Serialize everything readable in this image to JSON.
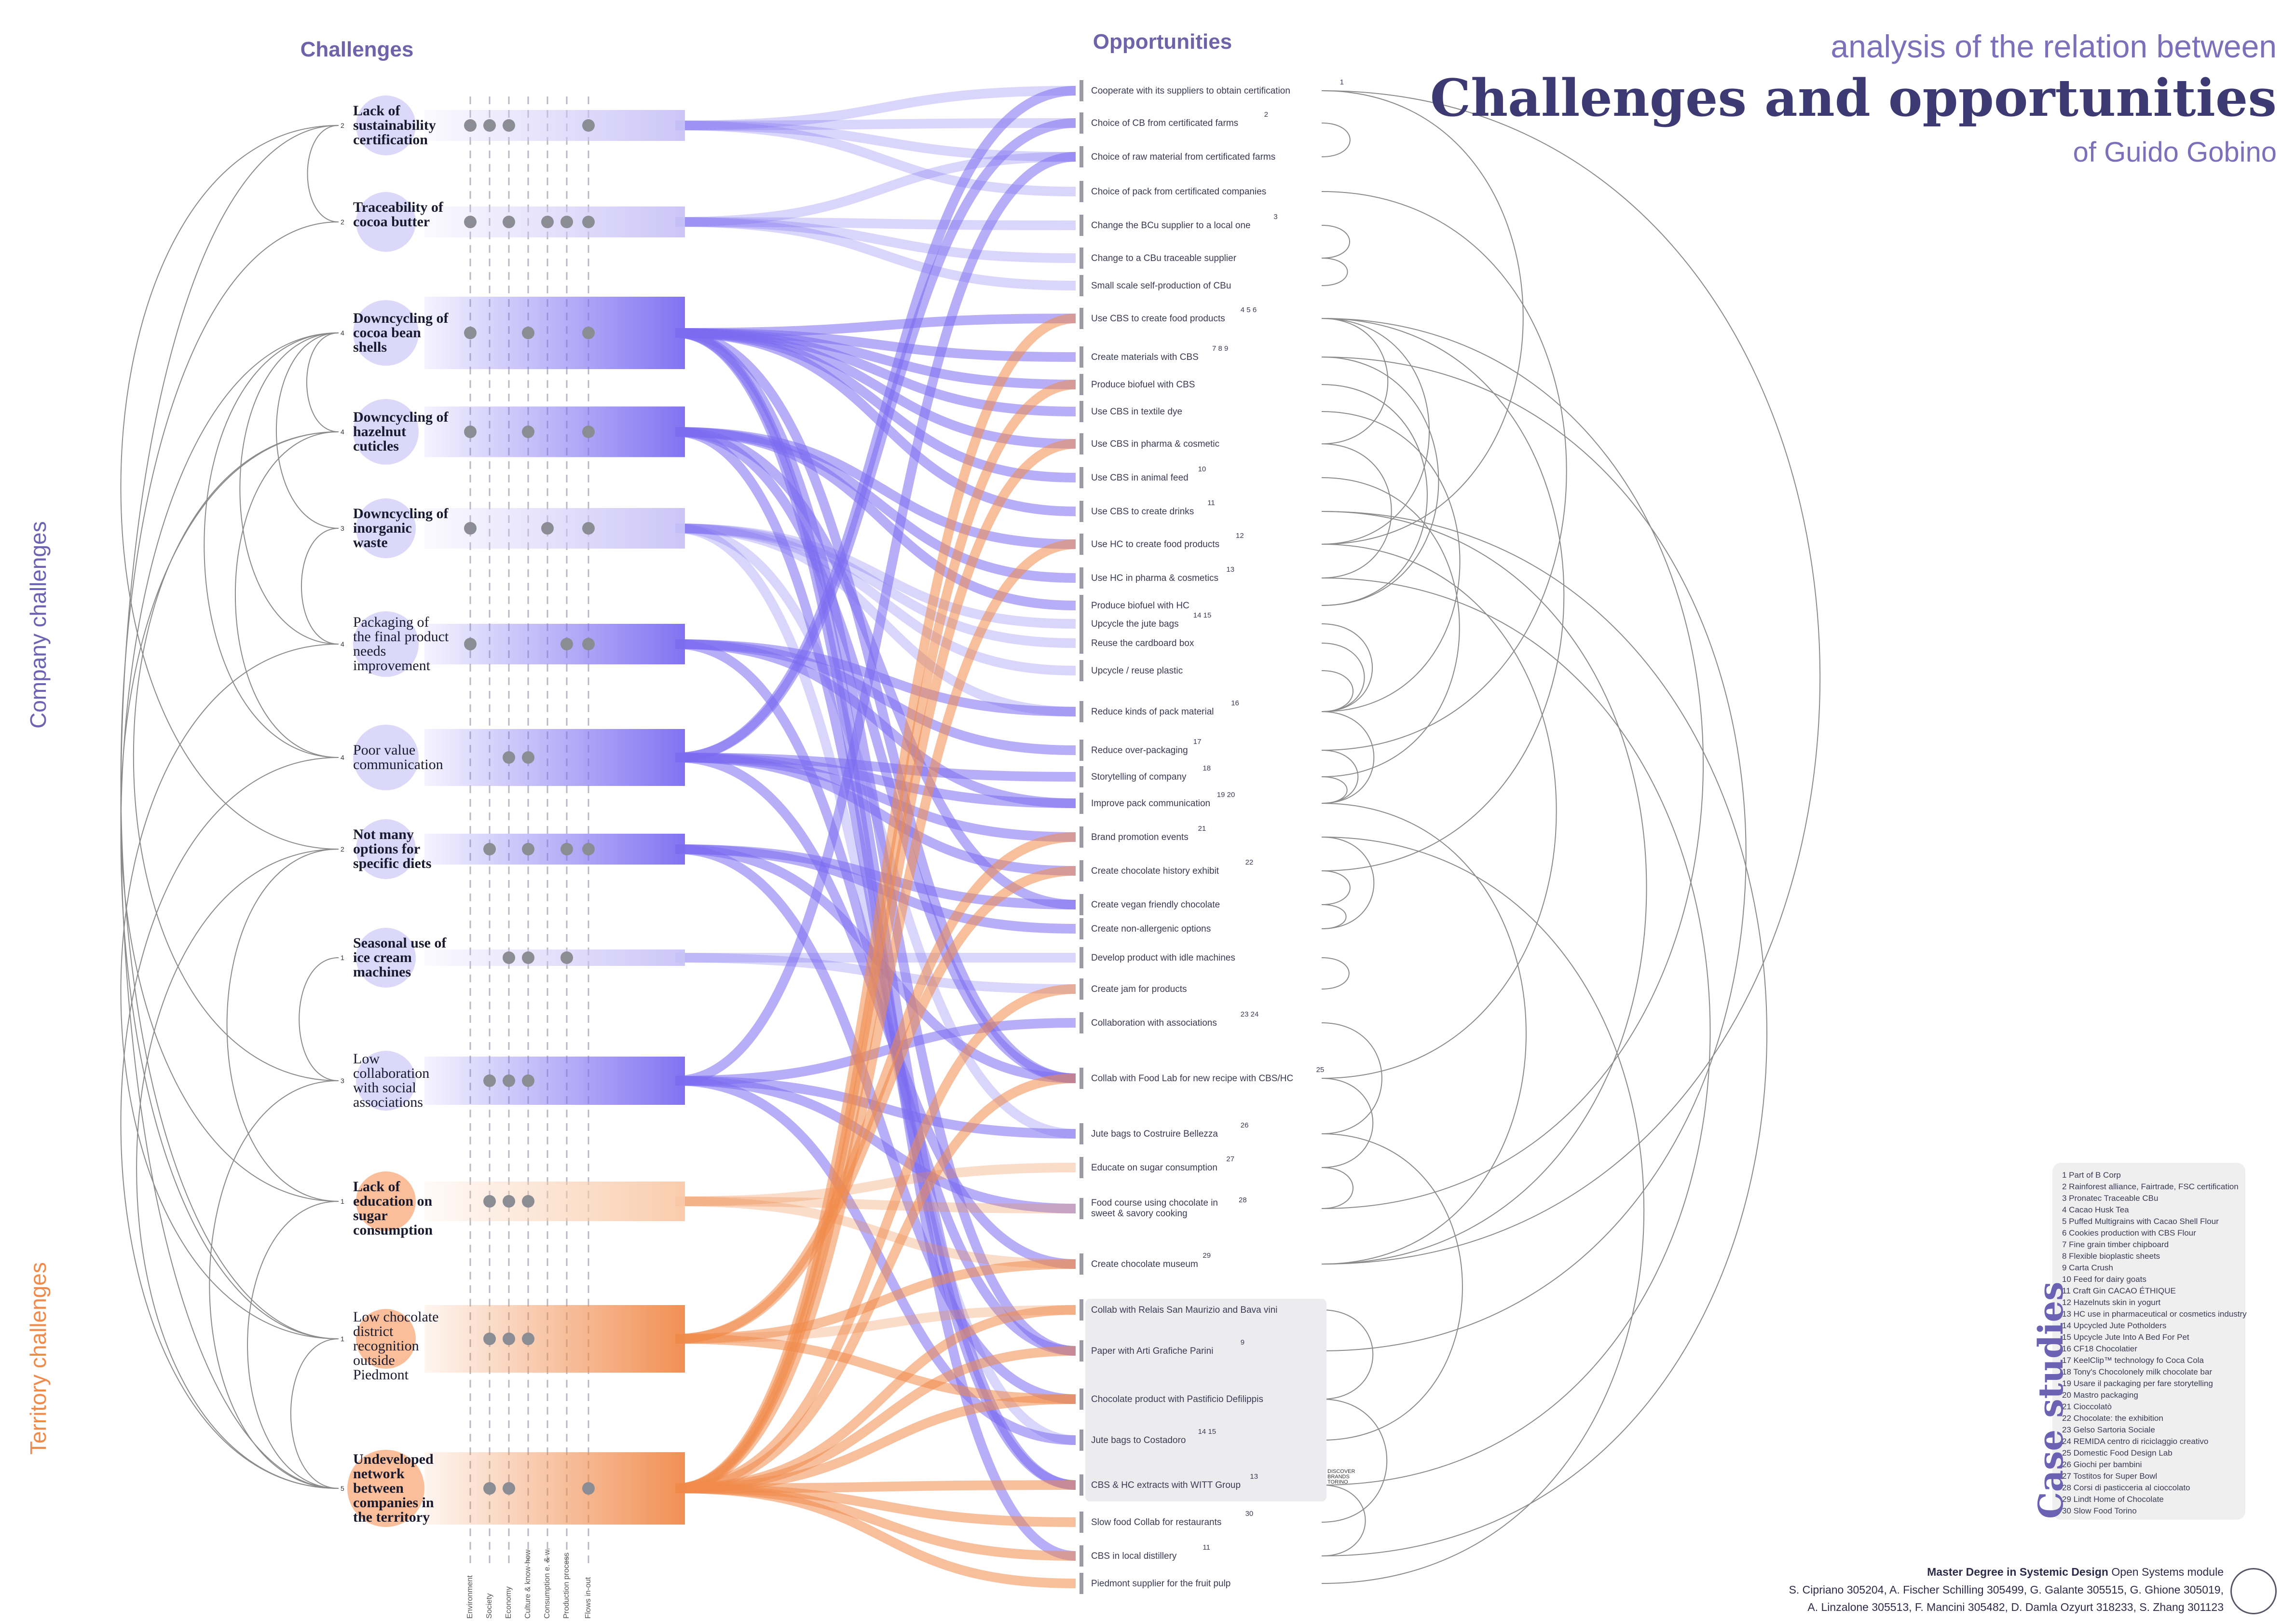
{
  "header": {
    "challenges": "Challenges",
    "opportunities": "Opportunities",
    "title_line1": "analysis of the relation between",
    "title_line2": "Challenges and opportunities",
    "title_line3": "of Guido Gobino"
  },
  "side_labels": {
    "company": "Company challenges",
    "territory": "Territory challenges"
  },
  "colors": {
    "company": "#7b6cf0",
    "company_light": "#c9c2f7",
    "territory": "#f08a4b",
    "territory_light": "#f9c9a8",
    "title": "#3d3a73",
    "accent": "#6b62b4"
  },
  "axis_labels": [
    "Environment",
    "Society",
    "Economy",
    "Culture & know-how",
    "Consumption e. & w.",
    "Production process",
    "Flows in-out"
  ],
  "challenges": [
    {
      "label": "Lack of sustainability certification",
      "count": "2",
      "bold": true,
      "group": "company",
      "dots": [
        0,
        1,
        2,
        6
      ]
    },
    {
      "label": "Traceability of cocoa butter",
      "count": "2",
      "bold": true,
      "group": "company",
      "dots": [
        0,
        2,
        4,
        5,
        6
      ]
    },
    {
      "label": "Downcycling of cocoa bean shells",
      "count": "4",
      "bold": true,
      "group": "company",
      "dots": [
        0,
        3,
        6
      ]
    },
    {
      "label": "Downcycling of hazelnut cuticles",
      "count": "4",
      "bold": true,
      "group": "company",
      "dots": [
        0,
        3,
        6
      ]
    },
    {
      "label": "Downcycling of inorganic waste",
      "count": "3",
      "bold": true,
      "group": "company",
      "dots": [
        0,
        4,
        6
      ]
    },
    {
      "label": "Packaging of the final product needs improvement",
      "count": "4",
      "bold": false,
      "group": "company",
      "dots": [
        0,
        5,
        6
      ]
    },
    {
      "label": "Poor value communication",
      "count": "4",
      "bold": false,
      "group": "company",
      "dots": [
        2,
        3
      ]
    },
    {
      "label": "Not many options for specific diets",
      "count": "2",
      "bold": true,
      "group": "company",
      "dots": [
        1,
        3,
        5,
        6
      ]
    },
    {
      "label": "Seasonal use of ice cream machines",
      "count": "1",
      "bold": true,
      "group": "company",
      "dots": [
        2,
        3,
        5
      ]
    },
    {
      "label": "Low collaboration with social associations",
      "count": "3",
      "bold": false,
      "group": "company",
      "dots": [
        1,
        2,
        3
      ]
    },
    {
      "label": "Lack of education on sugar consumption",
      "count": "1",
      "bold": true,
      "group": "territory",
      "dots": [
        1,
        2,
        3
      ]
    },
    {
      "label": "Low chocolate district recognition outside Piedmont",
      "count": "1",
      "bold": false,
      "group": "territory",
      "dots": [
        1,
        2,
        3
      ]
    },
    {
      "label": "Undeveloped network between companies in the territory",
      "count": "5",
      "bold": true,
      "group": "territory",
      "dots": [
        1,
        2,
        6
      ]
    }
  ],
  "opportunities": [
    {
      "label": "Cooperate with its suppliers to obtain certification",
      "sup": "1"
    },
    {
      "label": "Choice of CB from certificated farms",
      "sup": "2"
    },
    {
      "label": "Choice of raw material from certificated farms",
      "sup": ""
    },
    {
      "label": "Choice of pack from certificated companies",
      "sup": ""
    },
    {
      "label": "Change the BCu supplier to a local one",
      "sup": "3"
    },
    {
      "label": "Change to a CBu traceable supplier",
      "sup": ""
    },
    {
      "label": "Small scale self-production of CBu",
      "sup": ""
    },
    {
      "label": "Use CBS to create food products",
      "sup": "4  5  6"
    },
    {
      "label": "Create materials with CBS",
      "sup": "7  8  9"
    },
    {
      "label": "Produce biofuel with CBS",
      "sup": ""
    },
    {
      "label": "Use CBS in textile dye",
      "sup": ""
    },
    {
      "label": "Use CBS in pharma & cosmetic",
      "sup": ""
    },
    {
      "label": "Use CBS in animal feed",
      "sup": "10"
    },
    {
      "label": "Use CBS to create drinks",
      "sup": "11"
    },
    {
      "label": "Use HC to create food products",
      "sup": "12"
    },
    {
      "label": "Use HC in pharma & cosmetics",
      "sup": "13"
    },
    {
      "label": "Produce biofuel with HC",
      "sup": ""
    },
    {
      "label": "Upcycle the jute bags",
      "sup": "14  15"
    },
    {
      "label": "Reuse the cardboard box",
      "sup": ""
    },
    {
      "label": "Upcycle / reuse plastic",
      "sup": ""
    },
    {
      "label": "Reduce kinds of pack material",
      "sup": "16"
    },
    {
      "label": "Reduce over-packaging",
      "sup": "17"
    },
    {
      "label": "Storytelling of company",
      "sup": "18"
    },
    {
      "label": "Improve pack communication",
      "sup": "19  20"
    },
    {
      "label": "Brand promotion events",
      "sup": "21"
    },
    {
      "label": "Create chocolate history exhibit",
      "sup": "22"
    },
    {
      "label": "Create vegan friendly chocolate",
      "sup": ""
    },
    {
      "label": "Create non-allergenic options",
      "sup": ""
    },
    {
      "label": "Develop product with idle machines",
      "sup": ""
    },
    {
      "label": "Create jam for products",
      "sup": ""
    },
    {
      "label": "Collaboration with associations",
      "sup": "23  24"
    },
    {
      "label": "Collab with Food Lab for new recipe with CBS/HC",
      "sup": "25"
    },
    {
      "label": "Jute bags to Costruire Bellezza",
      "sup": "26"
    },
    {
      "label": "Educate on sugar consumption",
      "sup": "27"
    },
    {
      "label": "Food course using chocolate in sweet & savory cooking",
      "sup": "28"
    },
    {
      "label": "Create chocolate museum",
      "sup": "29"
    },
    {
      "label": "Collab with Relais San Maurizio and Bava vini",
      "sup": ""
    },
    {
      "label": "Paper with Arti Grafiche Parini",
      "sup": "9"
    },
    {
      "label": "Chocolate product with Pastificio Defilippis",
      "sup": ""
    },
    {
      "label": "Jute bags to Costadoro",
      "sup": "14  15"
    },
    {
      "label": "CBS & HC extracts with WITT Group",
      "sup": "13"
    },
    {
      "label": "Slow food Collab for restaurants",
      "sup": "30"
    },
    {
      "label": "CBS in local distillery",
      "sup": "11"
    },
    {
      "label": "Piedmont supplier for the fruit pulp",
      "sup": ""
    }
  ],
  "stamp_text": "DISCOVER BRANDS TORINO",
  "case_studies": {
    "title": "Case studies",
    "items": [
      "1 Part of B Corp",
      "2 Rainforest alliance, Fairtrade, FSC certification",
      "3 Pronatec Traceable CBu",
      "4 Cacao Husk Tea",
      "5 Puffed Multigrains with Cacao Shell Flour",
      "6 Cookies production with CBS Flour",
      "7 Fine grain timber chipboard",
      "8 Flexible bioplastic sheets",
      "9 Carta Crush",
      "10 Feed for dairy goats",
      "11 Craft Gin CACAO ÉTHIQUE",
      "12 Hazelnuts skin in yogurt",
      "13 HC use in pharmaceutical or cosmetics industry",
      "14 Upcycled Jute Potholders",
      "15 Upcycle Jute Into A Bed For Pet",
      "16 CF18 Chocolatier",
      "17 KeelClip™ technology fo Coca Cola",
      "18 Tony's Chocolonely milk chocolate bar",
      "19 Usare il packaging per fare storytelling",
      "20 Mastro packaging",
      "21 Cioccolatò",
      "22 Chocolate: the exhibition",
      "23 Gelso Sartoria Sociale",
      "24 REMIDA centro di riciclaggio creativo",
      "25 Domestic Food Design Lab",
      "26 Giochi per bambini",
      "27 Tostitos for Super Bowl",
      "28 Corsi di pasticceria al cioccolato",
      "29 Lindt Home of Chocolate",
      "30 Slow Food Torino"
    ]
  },
  "footer": {
    "line1_bold": "Master Degree in Systemic Design",
    "line1_rest": " Open Systems module",
    "line2": "S. Cipriano 305204, A. Fischer Schilling 305499, G. Galante 305515, G. Ghione 305019,",
    "line3": "A. Linzalone 305513, F. Mancini 305482, D. Damla Ozyurt 318233, S. Zhang 301123"
  }
}
